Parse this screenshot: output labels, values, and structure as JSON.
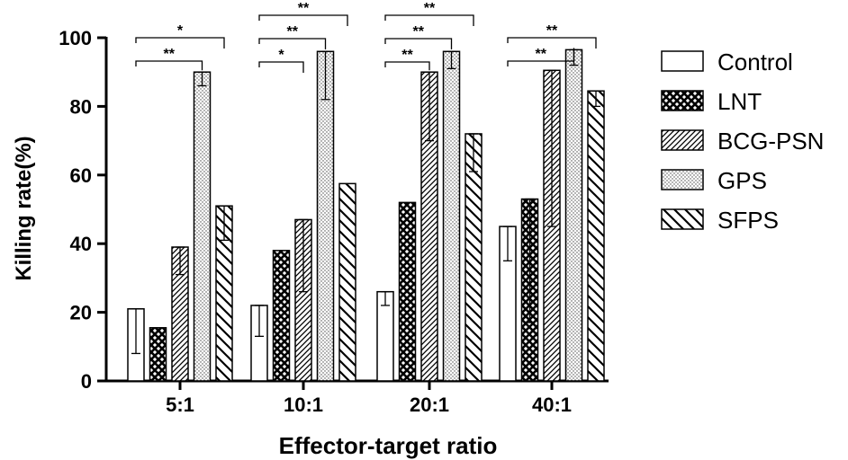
{
  "chart_data": {
    "type": "bar",
    "xlabel": "Effector-target ratio",
    "ylabel": "Killing rate(%)",
    "ylim": [
      0,
      100
    ],
    "yticks": [
      0,
      20,
      40,
      60,
      80,
      100
    ],
    "grid": false,
    "legend_position": "right",
    "categories": [
      "5:1",
      "10:1",
      "20:1",
      "40:1"
    ],
    "series": [
      {
        "name": "Control",
        "pattern": "empty",
        "values": [
          21,
          22,
          26,
          45
        ],
        "err_low": [
          8,
          13,
          22,
          35
        ],
        "err_high": [
          21,
          22,
          26,
          45
        ]
      },
      {
        "name": "LNT",
        "pattern": "crosshatch",
        "values": [
          15.5,
          38,
          52,
          53
        ],
        "err_low": [
          15.5,
          38,
          52,
          17
        ],
        "err_high": [
          15.5,
          38,
          52,
          53
        ]
      },
      {
        "name": "BCG-PSN",
        "pattern": "diagonal-up",
        "values": [
          39,
          47,
          90,
          90.5
        ],
        "err_low": [
          31,
          26,
          70,
          45
        ],
        "err_high": [
          39,
          47,
          90,
          90.5
        ]
      },
      {
        "name": "GPS",
        "pattern": "dots",
        "values": [
          90,
          96,
          96,
          96.5
        ],
        "err_low": [
          86,
          82,
          91,
          92
        ],
        "err_high": [
          90,
          96,
          96,
          96.5
        ]
      },
      {
        "name": "SFPS",
        "pattern": "diagonal-down",
        "values": [
          51,
          57.5,
          72,
          84.5
        ],
        "err_low": [
          41,
          57.5,
          61,
          80
        ],
        "err_high": [
          51,
          57.5,
          72,
          84.5
        ]
      }
    ],
    "significance": [
      {
        "group": "5:1",
        "from": "Control",
        "to": "SFPS",
        "label": "*"
      },
      {
        "group": "5:1",
        "from": "Control",
        "to": "GPS",
        "label": "**"
      },
      {
        "group": "10:1",
        "from": "Control",
        "to": "SFPS",
        "label": "**"
      },
      {
        "group": "10:1",
        "from": "Control",
        "to": "GPS",
        "label": "**"
      },
      {
        "group": "10:1",
        "from": "Control",
        "to": "BCG-PSN",
        "label": "*"
      },
      {
        "group": "20:1",
        "from": "Control",
        "to": "SFPS",
        "label": "**"
      },
      {
        "group": "20:1",
        "from": "Control",
        "to": "GPS",
        "label": "**"
      },
      {
        "group": "20:1",
        "from": "Control",
        "to": "BCG-PSN",
        "label": "**"
      },
      {
        "group": "40:1",
        "from": "Control",
        "to": "SFPS",
        "label": "**"
      },
      {
        "group": "40:1",
        "from": "Control",
        "to": "GPS",
        "label": "**"
      }
    ]
  }
}
